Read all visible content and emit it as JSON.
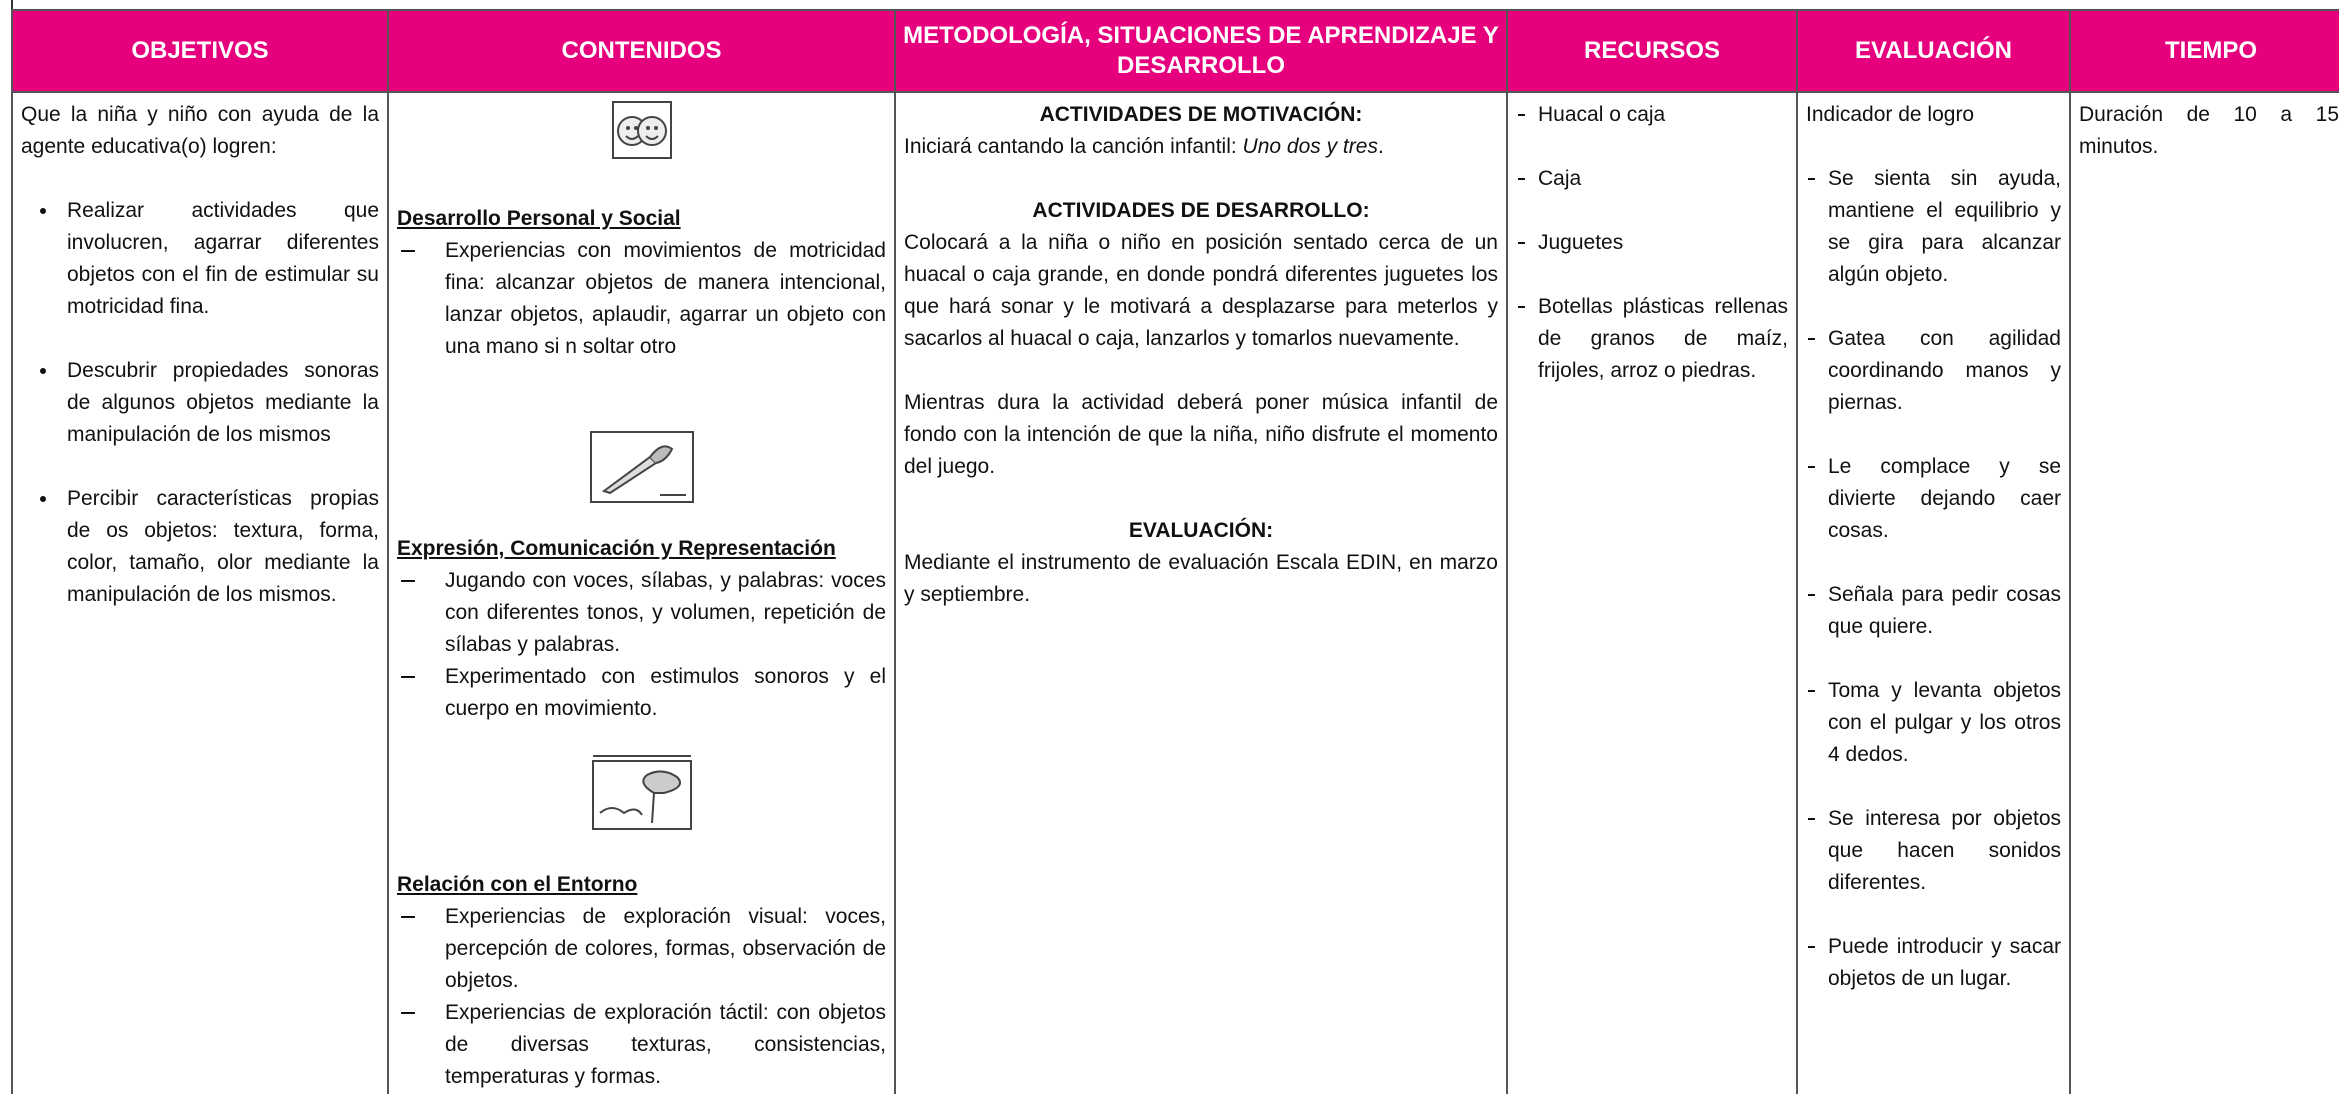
{
  "header": {
    "columns": [
      "OBJETIVOS",
      "CONTENIDOS",
      "METODOLOGÍA, SITUACIONES DE APRENDIZAJE Y DESARROLLO",
      "RECURSOS",
      "EVALUACIÓN",
      "TIEMPO"
    ]
  },
  "objetivos": {
    "intro": "Que la niña y niño con ayuda de la agente educativa(o) logren:",
    "items": [
      "Realizar actividades que involucren, agarrar diferentes objetos con el fin de estimular su motricidad fina.",
      "Descubrir propiedades sonoras de algunos objetos mediante la manipulación de los mismos",
      "Percibir características propias de os objetos: textura, forma, color, tamaño, olor mediante la manipulación de los mismos."
    ]
  },
  "contenidos": {
    "sections": [
      {
        "title": "Desarrollo Personal y Social",
        "items": [
          "Experiencias con movimientos de motricidad fina: alcanzar objetos de manera intencional, lanzar objetos, aplaudir, agarrar un objeto con una mano si n soltar otro"
        ]
      },
      {
        "title": "Expresión, Comunicación y Representación",
        "items": [
          "Jugando con voces, sílabas, y palabras: voces con diferentes tonos, y volumen, repetición de sílabas y palabras.",
          "Experimentado con estimulos sonoros y el cuerpo en movimiento."
        ]
      },
      {
        "title": "Relación con el Entorno",
        "items": [
          "Experiencias de exploración visual: voces, percepción de colores, formas, observación de objetos.",
          "Experiencias de exploración táctil: con objetos de diversas texturas, consistencias, temperaturas y formas."
        ]
      }
    ]
  },
  "metodologia": {
    "motivacion": {
      "heading": "ACTIVIDADES DE MOTIVACIÓN:",
      "text": [
        "Iniciará cantando la canción infantil: ",
        "Uno dos y tres",
        "."
      ]
    },
    "desarrollo": {
      "heading": "ACTIVIDADES DE DESARROLLO:",
      "paragraphs": [
        "Colocará a la niña o niño en posición sentado cerca de un huacal o caja grande, en donde pondrá diferentes juguetes los que hará sonar y le motivará a desplazarse para meterlos y sacarlos al huacal o caja, lanzarlos y tomarlos nuevamente.",
        "Mientras dura la actividad deberá poner música infantil de fondo con la intención de que la niña, niño disfrute el momento del juego."
      ]
    },
    "evaluacion": {
      "heading": "EVALUACIÓN:",
      "text": "Mediante el instrumento de evaluación Escala EDIN, en marzo y septiembre."
    }
  },
  "recursos": {
    "items": [
      "Huacal o caja",
      "Caja",
      "Juguetes",
      "Botellas plásticas rellenas de granos de maíz, frijoles, arroz o piedras."
    ]
  },
  "evaluacion": {
    "heading": "Indicador de logro",
    "items": [
      "Se sienta sin ayuda, mantiene el equilibrio y se gira para alcanzar algún objeto.",
      "Gatea con agilidad coordinando manos y piernas.",
      "Le complace y se divierte dejando caer cosas.",
      "Señala para pedir cosas que quiere.",
      "Toma y levanta objetos con el pulgar y los otros 4 dedos.",
      "Se interesa por objetos que hacen sonidos diferentes.",
      "Puede introducir y sacar objetos de un lugar."
    ]
  },
  "tiempo": {
    "text": "Duración de 10 a 15 minutos."
  }
}
